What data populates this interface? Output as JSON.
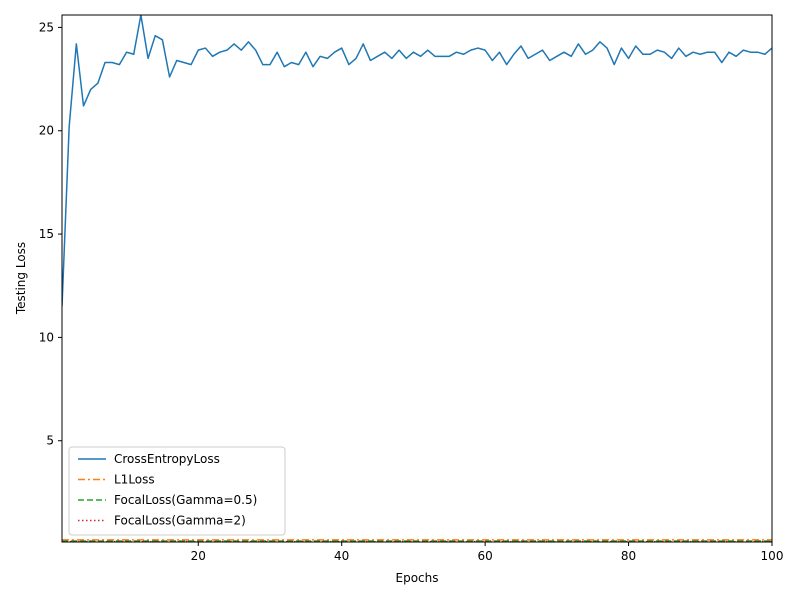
{
  "chart_data": {
    "type": "line",
    "title": "",
    "xlabel": "Epochs",
    "ylabel": "Testing Loss",
    "xlim": [
      1,
      100
    ],
    "ylim": [
      0.1,
      25.6
    ],
    "xticks": [
      20,
      40,
      60,
      80,
      100
    ],
    "yticks": [
      5,
      10,
      15,
      20,
      25
    ],
    "grid": false,
    "legend_position": "lower-left",
    "series": [
      {
        "name": "CrossEntropyLoss",
        "color": "#1f77b4",
        "style": "solid",
        "x": [
          1,
          2,
          3,
          4,
          5,
          6,
          7,
          8,
          9,
          10,
          11,
          12,
          13,
          14,
          15,
          16,
          17,
          18,
          19,
          20,
          21,
          22,
          23,
          24,
          25,
          26,
          27,
          28,
          29,
          30,
          31,
          32,
          33,
          34,
          35,
          36,
          37,
          38,
          39,
          40,
          41,
          42,
          43,
          44,
          45,
          46,
          47,
          48,
          49,
          50,
          51,
          52,
          53,
          54,
          55,
          56,
          57,
          58,
          59,
          60,
          61,
          62,
          63,
          64,
          65,
          66,
          67,
          68,
          69,
          70,
          71,
          72,
          73,
          74,
          75,
          76,
          77,
          78,
          79,
          80,
          81,
          82,
          83,
          84,
          85,
          86,
          87,
          88,
          89,
          90,
          91,
          92,
          93,
          94,
          95,
          96,
          97,
          98,
          99,
          100
        ],
        "values": [
          11.5,
          20.2,
          24.2,
          21.2,
          22.0,
          22.3,
          23.3,
          23.3,
          23.2,
          23.8,
          23.7,
          25.6,
          23.5,
          24.6,
          24.4,
          22.6,
          23.4,
          23.3,
          23.2,
          23.9,
          24.0,
          23.6,
          23.8,
          23.9,
          24.2,
          23.9,
          24.3,
          23.9,
          23.2,
          23.2,
          23.8,
          23.1,
          23.3,
          23.2,
          23.8,
          23.1,
          23.6,
          23.5,
          23.8,
          24.0,
          23.2,
          23.5,
          24.2,
          23.4,
          23.6,
          23.8,
          23.5,
          23.9,
          23.5,
          23.8,
          23.6,
          23.9,
          23.6,
          23.6,
          23.6,
          23.8,
          23.7,
          23.9,
          24.0,
          23.9,
          23.4,
          23.8,
          23.2,
          23.7,
          24.1,
          23.5,
          23.7,
          23.9,
          23.4,
          23.6,
          23.8,
          23.6,
          24.2,
          23.7,
          23.9,
          24.3,
          24.0,
          23.2,
          24.0,
          23.5,
          24.1,
          23.7,
          23.7,
          23.9,
          23.8,
          23.5,
          24.0,
          23.6,
          23.8,
          23.7,
          23.8,
          23.8,
          23.3,
          23.8,
          23.6,
          23.9,
          23.8,
          23.8,
          23.7,
          24.0
        ]
      },
      {
        "name": "L1Loss",
        "color": "#ff7f0e",
        "style": "dashdot",
        "x": [
          1,
          100
        ],
        "values": [
          0.2,
          0.2
        ]
      },
      {
        "name": "FocalLoss(Gamma=0.5)",
        "color": "#2ca02c",
        "style": "dashed",
        "x": [
          1,
          100
        ],
        "values": [
          0.15,
          0.15
        ]
      },
      {
        "name": "FocalLoss(Gamma=2)",
        "color": "#d62728",
        "style": "dotted",
        "x": [
          1,
          100
        ],
        "values": [
          0.12,
          0.12
        ]
      }
    ]
  }
}
